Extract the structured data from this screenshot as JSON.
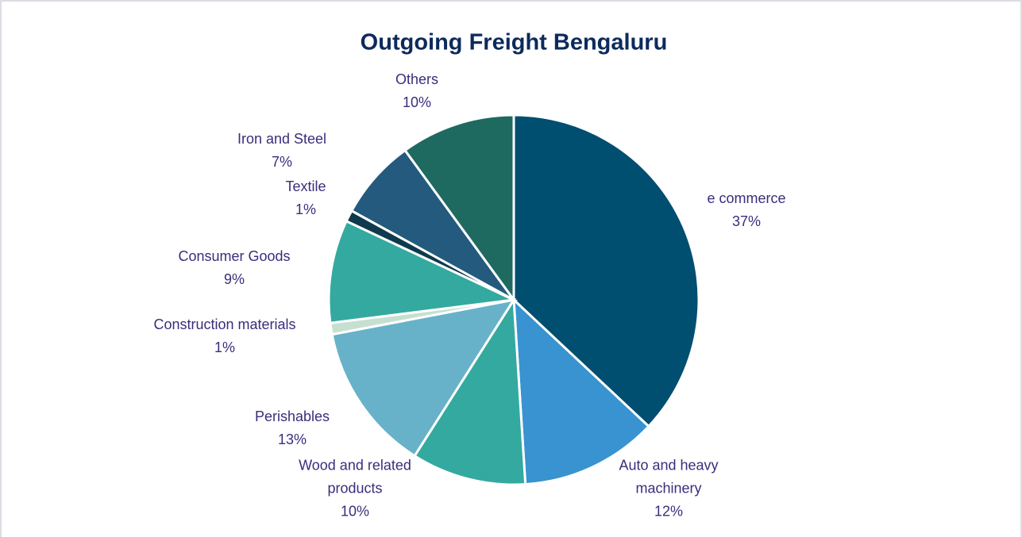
{
  "chart_data": {
    "type": "pie",
    "title": "Outgoing Freight Bengaluru",
    "categories": [
      "e commerce",
      "Auto and heavy machinery",
      "Wood and related products",
      "Perishables",
      "Construction materials",
      "Consumer Goods",
      "Textile",
      "Iron and Steel",
      "Others"
    ],
    "values": [
      37,
      12,
      10,
      13,
      1,
      9,
      1,
      7,
      10
    ],
    "value_labels": [
      "37%",
      "12%",
      "10%",
      "13%",
      "1%",
      "9%",
      "1%",
      "7%",
      "10%"
    ],
    "colors": [
      "#004e70",
      "#3893d0",
      "#34a99f",
      "#67b2c9",
      "#c5e0d0",
      "#34a99f",
      "#0f3a4e",
      "#235a7e",
      "#1f6a60"
    ]
  }
}
